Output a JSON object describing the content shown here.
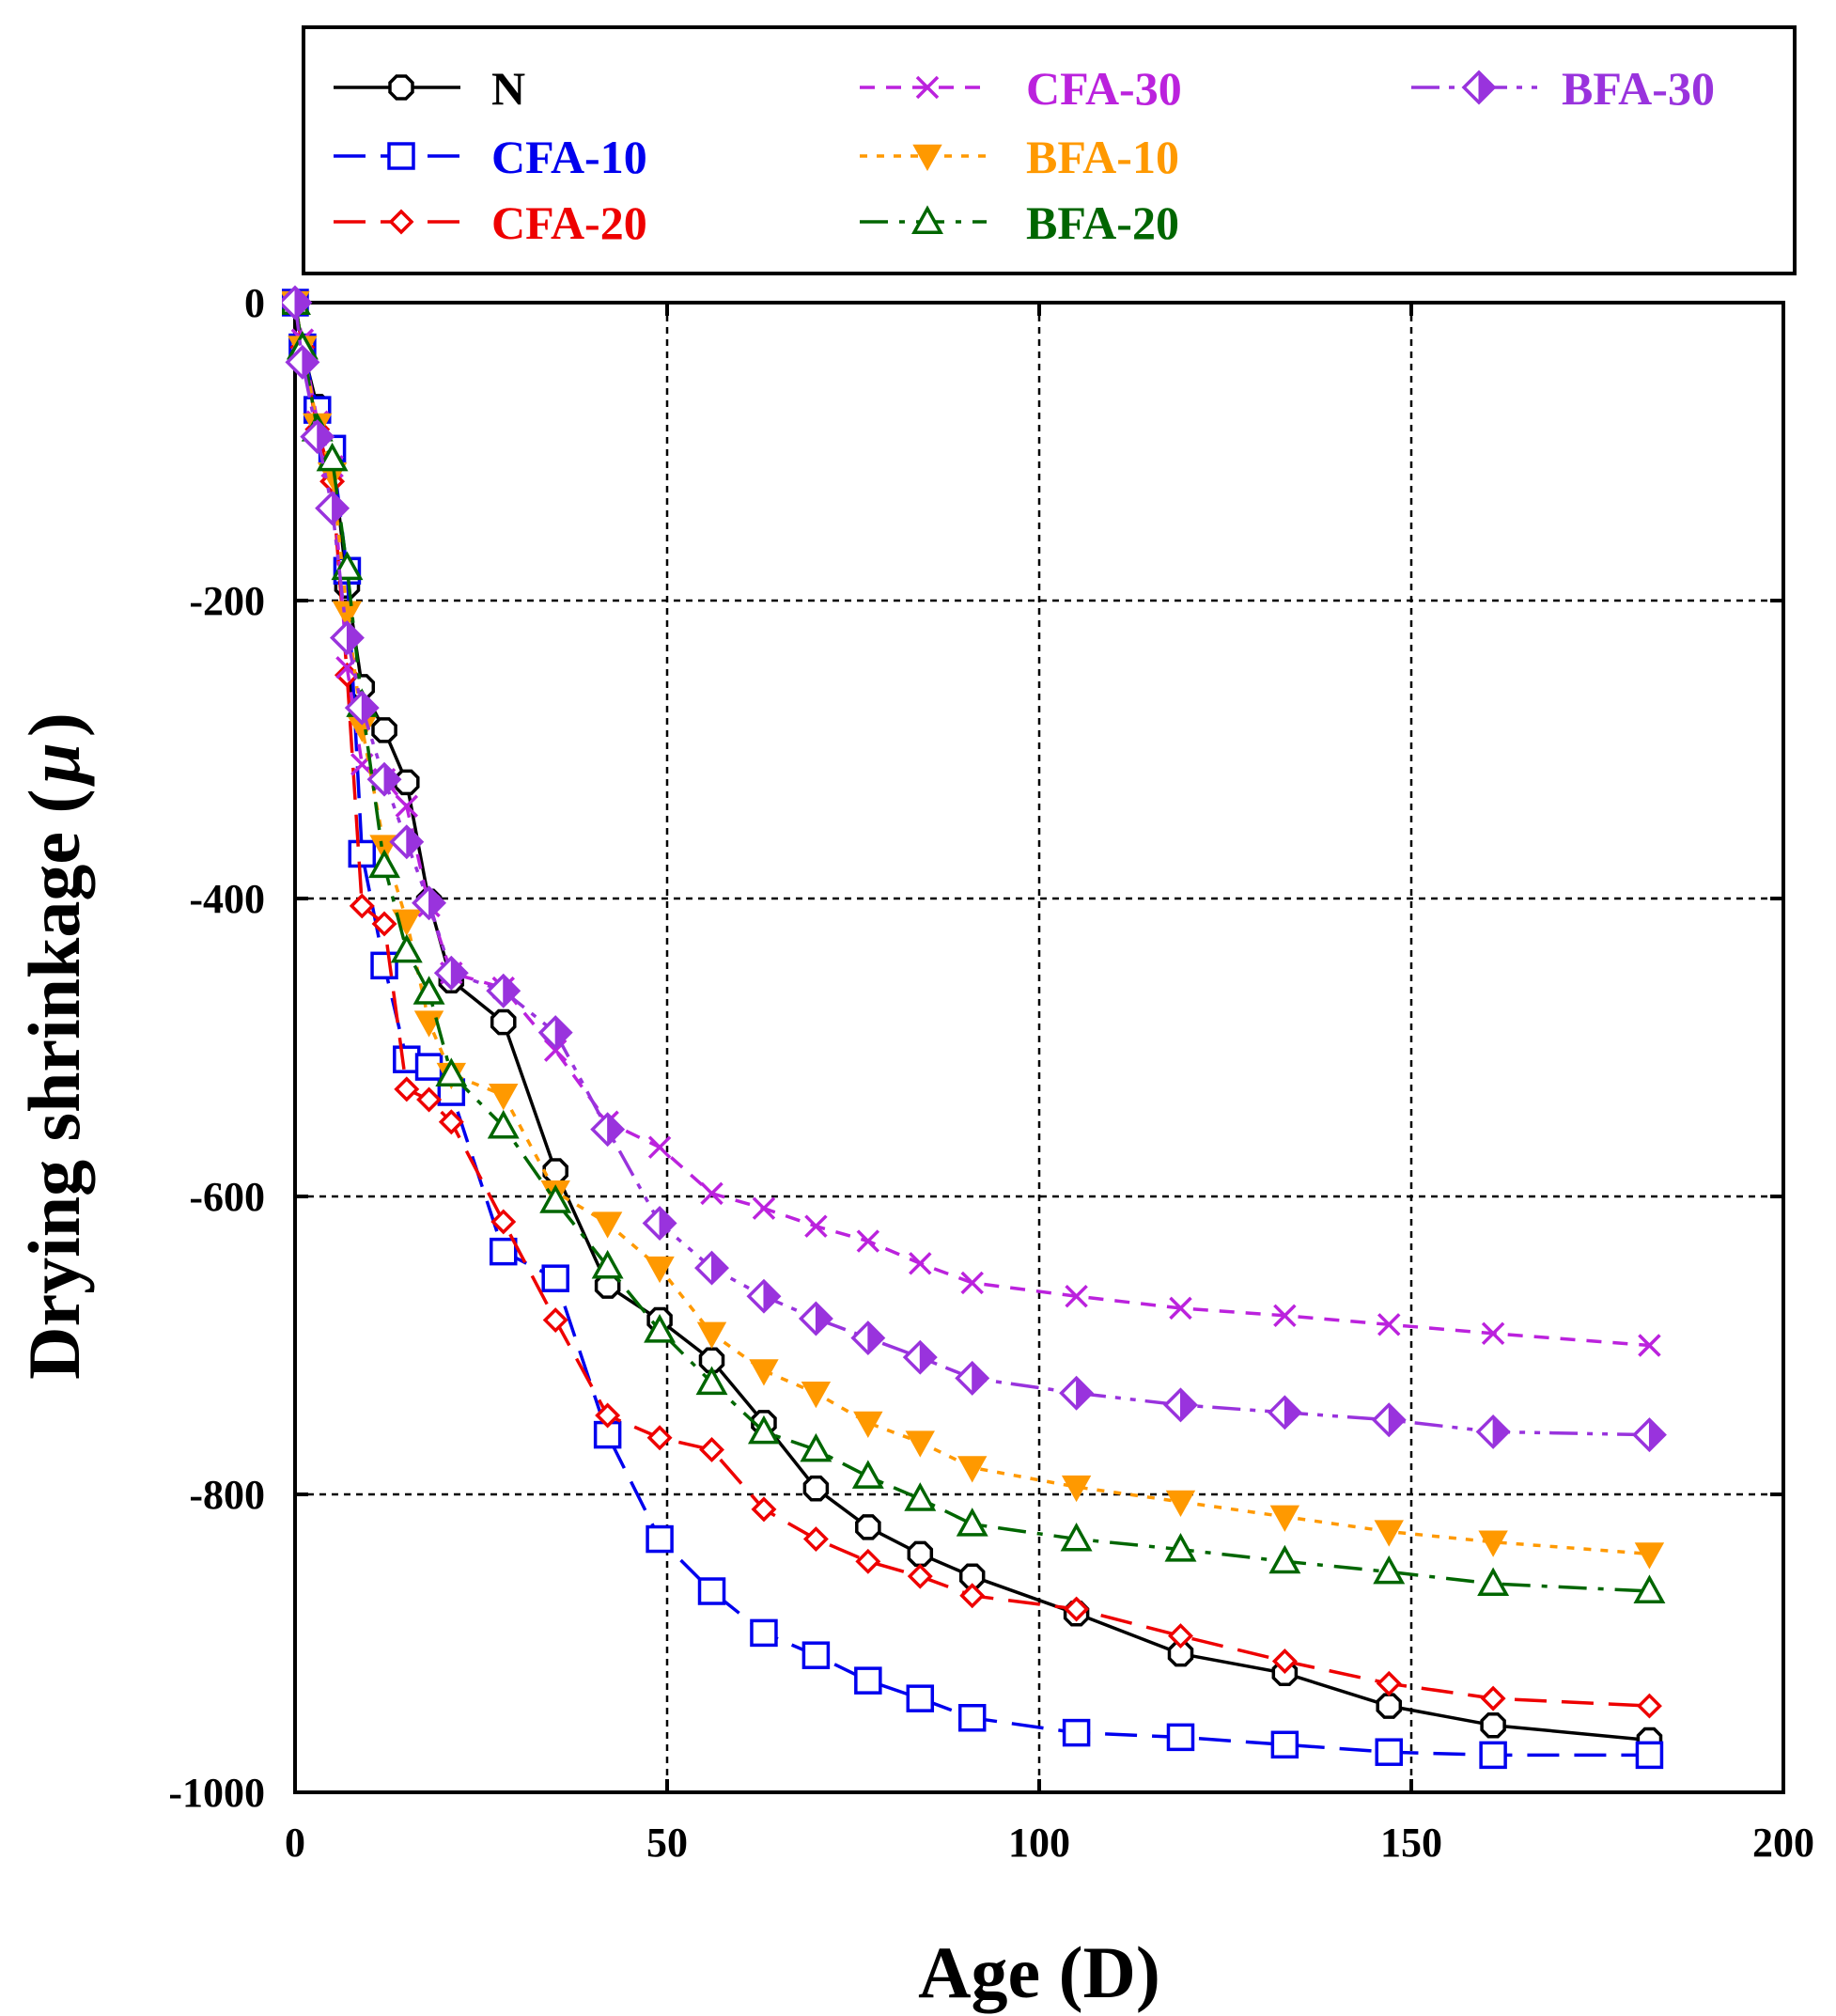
{
  "chart_data": {
    "type": "line",
    "xlabel": "Age (D)",
    "ylabel": "Drying shrinkage (",
    "ylabel_symbol": "μ",
    "ylabel_close": ")",
    "xlim": [
      0,
      200
    ],
    "ylim": [
      -1000,
      0
    ],
    "xticks": [
      0,
      50,
      100,
      150,
      200
    ],
    "yticks": [
      0,
      -200,
      -400,
      -600,
      -800,
      -1000
    ],
    "grid": true,
    "legend_position": "top",
    "series": [
      {
        "name": "N",
        "color": "#000000",
        "marker": "octagon",
        "dash": "solid",
        "x": [
          0,
          1,
          3,
          5,
          7,
          9,
          12,
          15,
          18,
          21,
          28,
          35,
          42,
          49,
          56,
          63,
          70,
          77,
          84,
          91,
          105,
          119,
          133,
          147,
          161,
          182
        ],
        "y": [
          0,
          -30,
          -70,
          -100,
          -190,
          -258,
          -287,
          -322,
          -402,
          -455,
          -483,
          -583,
          -660,
          -683,
          -710,
          -752,
          -796,
          -822,
          -840,
          -855,
          -880,
          -907,
          -920,
          -942,
          -955,
          -965
        ]
      },
      {
        "name": "CFA-10",
        "color": "#0000ee",
        "marker": "square",
        "dash": "longdash",
        "x": [
          0,
          1,
          3,
          5,
          7,
          9,
          12,
          15,
          18,
          21,
          28,
          35,
          42,
          49,
          56,
          63,
          70,
          77,
          84,
          91,
          105,
          119,
          133,
          147,
          161,
          182
        ],
        "y": [
          0,
          -30,
          -72,
          -98,
          -180,
          -370,
          -445,
          -508,
          -513,
          -530,
          -637,
          -655,
          -760,
          -830,
          -865,
          -893,
          -908,
          -925,
          -937,
          -950,
          -960,
          -963,
          -968,
          -973,
          -975,
          -975
        ]
      },
      {
        "name": "CFA-20",
        "color": "#ee0000",
        "marker": "diamond-open",
        "dash": "longdash",
        "x": [
          0,
          1,
          3,
          5,
          7,
          9,
          12,
          15,
          18,
          21,
          28,
          35,
          42,
          49,
          56,
          63,
          70,
          77,
          84,
          91,
          105,
          119,
          133,
          147,
          161,
          182
        ],
        "y": [
          0,
          -30,
          -85,
          -120,
          -250,
          -405,
          -417,
          -528,
          -535,
          -550,
          -617,
          -683,
          -747,
          -762,
          -770,
          -810,
          -830,
          -845,
          -855,
          -868,
          -877,
          -895,
          -912,
          -927,
          -937,
          -942
        ]
      },
      {
        "name": "CFA-30",
        "color": "#bb22dd",
        "marker": "x",
        "dash": "dash",
        "x": [
          0,
          1,
          3,
          5,
          7,
          9,
          12,
          15,
          18,
          21,
          28,
          35,
          42,
          49,
          56,
          63,
          70,
          77,
          84,
          91,
          105,
          119,
          133,
          147,
          161,
          182
        ],
        "y": [
          0,
          -25,
          -80,
          -110,
          -245,
          -310,
          -320,
          -338,
          -405,
          -450,
          -460,
          -502,
          -550,
          -567,
          -598,
          -608,
          -620,
          -630,
          -645,
          -658,
          -667,
          -675,
          -680,
          -686,
          -692,
          -700
        ]
      },
      {
        "name": "BFA-10",
        "color": "#ff9900",
        "marker": "triangle-down",
        "dash": "dot",
        "x": [
          0,
          1,
          3,
          5,
          7,
          9,
          12,
          15,
          18,
          21,
          28,
          35,
          42,
          49,
          56,
          63,
          70,
          77,
          84,
          91,
          105,
          119,
          133,
          147,
          161,
          182
        ],
        "y": [
          0,
          -30,
          -82,
          -115,
          -208,
          -285,
          -365,
          -415,
          -483,
          -518,
          -532,
          -597,
          -618,
          -648,
          -692,
          -717,
          -732,
          -752,
          -765,
          -782,
          -795,
          -805,
          -815,
          -825,
          -832,
          -840
        ]
      },
      {
        "name": "BFA-20",
        "color": "#006600",
        "marker": "triangle",
        "dash": "dashdot",
        "x": [
          0,
          1,
          3,
          5,
          7,
          9,
          12,
          15,
          18,
          21,
          28,
          35,
          42,
          49,
          56,
          63,
          70,
          77,
          84,
          91,
          105,
          119,
          133,
          147,
          161,
          182
        ],
        "y": [
          0,
          -30,
          -85,
          -105,
          -178,
          -270,
          -378,
          -435,
          -463,
          -518,
          -553,
          -603,
          -647,
          -690,
          -725,
          -758,
          -770,
          -788,
          -803,
          -820,
          -830,
          -837,
          -845,
          -852,
          -860,
          -865
        ]
      },
      {
        "name": "BFA-30",
        "color": "#9933dd",
        "marker": "diamond-half",
        "dash": "dashdotdot",
        "x": [
          0,
          1,
          3,
          5,
          7,
          9,
          12,
          15,
          18,
          21,
          28,
          35,
          42,
          49,
          56,
          63,
          70,
          77,
          84,
          91,
          105,
          119,
          133,
          147,
          161,
          182
        ],
        "y": [
          0,
          -40,
          -90,
          -138,
          -225,
          -272,
          -320,
          -362,
          -403,
          -450,
          -462,
          -490,
          -555,
          -618,
          -648,
          -667,
          -682,
          -695,
          -708,
          -722,
          -732,
          -740,
          -745,
          -750,
          -758,
          -760
        ]
      }
    ]
  }
}
